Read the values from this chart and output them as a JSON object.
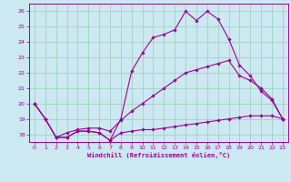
{
  "xlabel": "Windchill (Refroidissement éolien,°C)",
  "bg_color": "#cce8f0",
  "line_color": "#990099",
  "grid_color": "#99ccbb",
  "xlim": [
    -0.5,
    23.5
  ],
  "ylim": [
    17.5,
    26.5
  ],
  "yticks": [
    18,
    19,
    20,
    21,
    22,
    23,
    24,
    25,
    26
  ],
  "xticks": [
    0,
    1,
    2,
    3,
    4,
    5,
    6,
    7,
    8,
    9,
    10,
    11,
    12,
    13,
    14,
    15,
    16,
    17,
    18,
    19,
    20,
    21,
    22,
    23
  ],
  "line1_x": [
    0,
    1,
    2,
    3,
    4,
    5,
    6,
    7,
    8,
    9,
    10,
    11,
    12,
    13,
    14,
    15,
    16,
    17,
    18,
    19,
    20,
    21,
    22,
    23
  ],
  "line1_y": [
    20.0,
    19.0,
    17.8,
    17.8,
    18.2,
    18.2,
    18.1,
    17.6,
    18.1,
    18.2,
    18.3,
    18.3,
    18.4,
    18.5,
    18.6,
    18.7,
    18.8,
    18.9,
    19.0,
    19.1,
    19.2,
    19.2,
    19.2,
    19.0
  ],
  "line2_x": [
    0,
    1,
    2,
    3,
    4,
    5,
    6,
    7,
    8,
    9,
    10,
    11,
    12,
    13,
    14,
    15,
    16,
    17,
    18,
    19,
    20,
    21,
    22,
    23
  ],
  "line2_y": [
    20.0,
    19.0,
    17.8,
    17.8,
    18.2,
    18.2,
    18.1,
    17.6,
    19.0,
    22.1,
    23.3,
    24.3,
    24.5,
    24.8,
    26.0,
    25.4,
    26.0,
    25.5,
    24.2,
    22.5,
    21.8,
    20.8,
    20.2,
    19.0
  ],
  "line3_x": [
    0,
    1,
    2,
    3,
    4,
    5,
    6,
    7,
    8,
    9,
    10,
    11,
    12,
    13,
    14,
    15,
    16,
    17,
    18,
    19,
    20,
    21,
    22,
    23
  ],
  "line3_y": [
    20.0,
    19.0,
    17.8,
    18.1,
    18.3,
    18.4,
    18.4,
    18.2,
    18.9,
    19.5,
    20.0,
    20.5,
    21.0,
    21.5,
    22.0,
    22.2,
    22.4,
    22.6,
    22.8,
    21.8,
    21.5,
    21.0,
    20.3,
    19.0
  ]
}
